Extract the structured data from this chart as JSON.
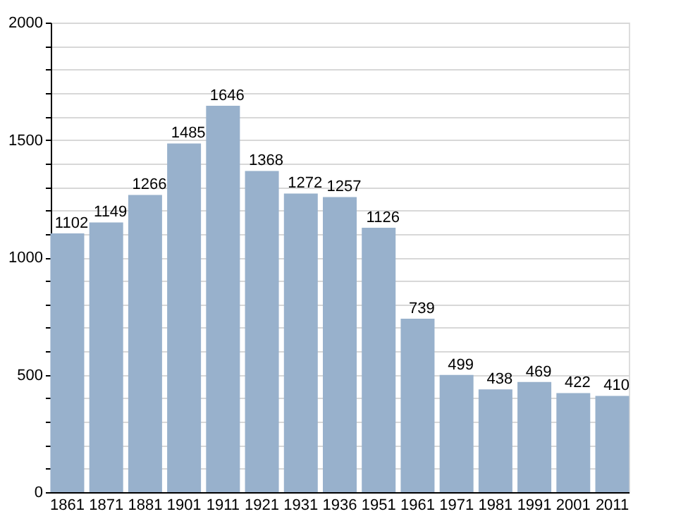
{
  "chart_data": {
    "type": "bar",
    "categories": [
      "1861",
      "1871",
      "1881",
      "1901",
      "1911",
      "1921",
      "1931",
      "1936",
      "1951",
      "1961",
      "1971",
      "1981",
      "1991",
      "2001",
      "2011"
    ],
    "values": [
      1102,
      1149,
      1266,
      1485,
      1646,
      1368,
      1272,
      1257,
      1126,
      739,
      499,
      438,
      469,
      422,
      410
    ],
    "color": "#98b1cc",
    "ylim": [
      0,
      2000
    ],
    "yticks": [
      0,
      {
        "value": 100,
        "label": null
      },
      {
        "value": 200,
        "label": null
      },
      {
        "value": 300,
        "label": null
      },
      {
        "value": 400,
        "label": null
      },
      500,
      {
        "value": 600,
        "label": null
      },
      {
        "value": 700,
        "label": null
      },
      {
        "value": 800,
        "label": null
      },
      {
        "value": 900,
        "label": null
      },
      1000,
      {
        "value": 1100,
        "label": null
      },
      {
        "value": 1200,
        "label": null
      },
      {
        "value": 1300,
        "label": null
      },
      {
        "value": 1400,
        "label": null
      },
      1500,
      {
        "value": 1600,
        "label": null
      },
      {
        "value": 1700,
        "label": null
      },
      {
        "value": 1800,
        "label": null
      },
      {
        "value": 1900,
        "label": null
      },
      2000
    ],
    "grid": true,
    "data_labels": true
  }
}
